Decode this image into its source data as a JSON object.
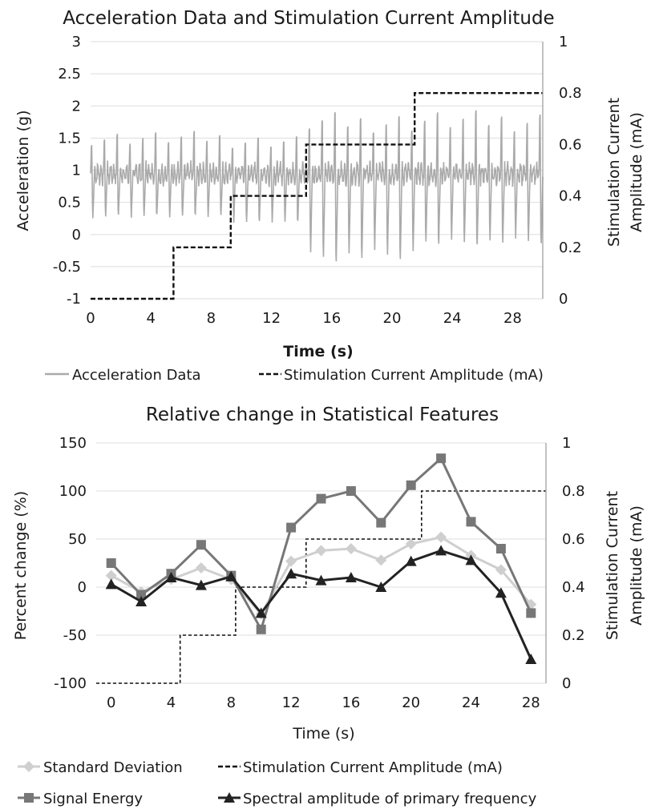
{
  "chart_data": [
    {
      "type": "line",
      "title": "Acceleration Data and Stimulation Current Amplitude",
      "xlabel": "Time (s)",
      "ylabel": "Acceleration (g)",
      "y2label": "Stimulation  Current Amplitude (mA)",
      "xlim": [
        0,
        30
      ],
      "ylim": [
        -1,
        3
      ],
      "y2lim": [
        0,
        1
      ],
      "x_ticks": [
        0,
        4,
        8,
        12,
        16,
        20,
        24,
        28
      ],
      "y_ticks": [
        -1,
        -0.5,
        0,
        0.5,
        1,
        1.5,
        2,
        2.5,
        3
      ],
      "y2_ticks": [
        0,
        0.2,
        0.4,
        0.6,
        0.8,
        1
      ],
      "grid": "horizontal",
      "legend_placement": "bottom",
      "colors": {
        "acceleration": "#aaaaaa",
        "stimulation": "#111111"
      },
      "series": [
        {
          "name": "Acceleration Data",
          "axis": "left",
          "style": "solid",
          "segments": [
            {
              "t_start": 0,
              "t_end": 9,
              "period": 0.85,
              "peak": 1.65,
              "trough": 0.2,
              "base": 0.95
            },
            {
              "t_start": 9,
              "t_end": 14,
              "period": 0.85,
              "peak": 1.6,
              "trough": 0.1,
              "base": 0.95
            },
            {
              "t_start": 14,
              "t_end": 21.5,
              "period": 0.85,
              "peak": 2.0,
              "trough": -0.5,
              "base": 0.95
            },
            {
              "t_start": 21.5,
              "t_end": 30,
              "period": 0.85,
              "peak": 2.0,
              "trough": -0.25,
              "base": 0.95
            }
          ],
          "max_peak": 2.4,
          "min_trough": -0.6
        },
        {
          "name": "Stimulation Current Amplitude (mA)",
          "axis": "right",
          "style": "dashed",
          "x": [
            0,
            5.5,
            5.5,
            9.3,
            9.3,
            14.3,
            14.3,
            21.5,
            21.5,
            30
          ],
          "values": [
            0,
            0,
            0.2,
            0.2,
            0.4,
            0.4,
            0.6,
            0.6,
            0.8,
            0.8
          ]
        }
      ]
    },
    {
      "type": "line",
      "title": "Relative change in Statistical Features",
      "xlabel": "Time (s)",
      "ylabel": "Percent change (%)",
      "y2label": "Stimulation Current Amplitude (mA)",
      "xlim": [
        -1,
        29
      ],
      "ylim": [
        -100,
        150
      ],
      "y2lim": [
        0,
        1
      ],
      "x_ticks": [
        0,
        4,
        8,
        12,
        16,
        20,
        24,
        28
      ],
      "y_ticks": [
        -100,
        -50,
        0,
        50,
        100,
        150
      ],
      "y2_ticks": [
        0,
        0.2,
        0.4,
        0.6,
        0.8,
        1
      ],
      "grid": "horizontal",
      "legend_placement": "bottom",
      "colors": {
        "std": "#cfcfcf",
        "energy": "#777777",
        "spectral": "#222222",
        "stimulation": "#111111"
      },
      "series": [
        {
          "name": "Standard Deviation",
          "axis": "left",
          "marker": "diamond",
          "x": [
            0,
            2,
            4,
            6,
            8,
            10,
            12,
            14,
            16,
            18,
            20,
            22,
            24,
            26,
            28
          ],
          "values": [
            12,
            -5,
            8,
            20,
            8,
            -28,
            27,
            38,
            40,
            28,
            45,
            52,
            33,
            18,
            -18
          ]
        },
        {
          "name": "Signal Energy",
          "axis": "left",
          "marker": "square",
          "x": [
            0,
            2,
            4,
            6,
            8,
            10,
            12,
            14,
            16,
            18,
            20,
            22,
            24,
            26,
            28
          ],
          "values": [
            25,
            -8,
            14,
            44,
            12,
            -44,
            62,
            92,
            100,
            67,
            106,
            134,
            68,
            40,
            -27
          ]
        },
        {
          "name": "Spectral amplitude of primary frequency",
          "axis": "left",
          "marker": "triangle",
          "x": [
            0,
            2,
            4,
            6,
            8,
            10,
            12,
            14,
            16,
            18,
            20,
            22,
            24,
            26,
            28
          ],
          "values": [
            3,
            -15,
            10,
            2,
            11,
            -27,
            14,
            7,
            10,
            0,
            27,
            38,
            28,
            -6,
            -75
          ]
        },
        {
          "name": "Stimulation Current Amplitude (mA)",
          "axis": "right",
          "style": "dashed",
          "x": [
            -1,
            4.6,
            4.6,
            8.3,
            8.3,
            13,
            13,
            20.7,
            20.7,
            29
          ],
          "values": [
            0,
            0,
            0.2,
            0.2,
            0.4,
            0.4,
            0.6,
            0.6,
            0.8,
            0.8
          ]
        }
      ]
    }
  ]
}
